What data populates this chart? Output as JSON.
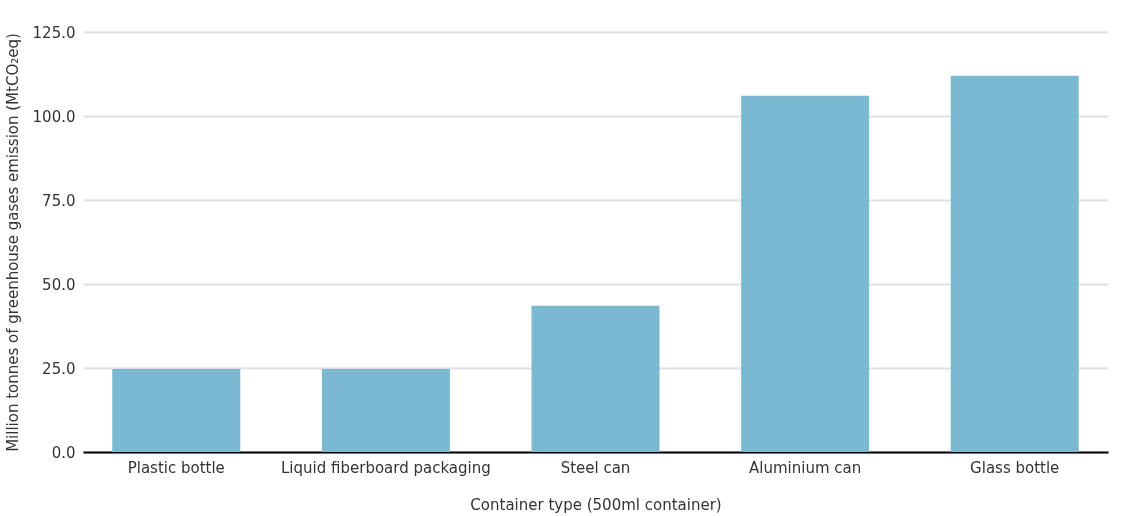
{
  "chart_data": {
    "type": "bar",
    "xlabel": "Container type (500ml container)",
    "ylabel": "Million tonnes of greenhouse gases emission (MtCO₂eq)",
    "categories": [
      "Plastic bottle",
      "Liquid fiberboard packaging",
      "Steel can",
      "Aluminium can",
      "Glass bottle"
    ],
    "values": [
      24.7,
      24.7,
      43.5,
      106.0,
      112.0
    ],
    "color": "#7ab9d1",
    "ylim": [
      0,
      125
    ],
    "yticks": [
      {
        "value": 0,
        "label": "0.0"
      },
      {
        "value": 25,
        "label": "25.0"
      },
      {
        "value": 50,
        "label": "50.0"
      },
      {
        "value": 75,
        "label": "75.0"
      },
      {
        "value": 100,
        "label": "100.0"
      },
      {
        "value": 125,
        "label": "125.0"
      }
    ],
    "grid": "y"
  }
}
